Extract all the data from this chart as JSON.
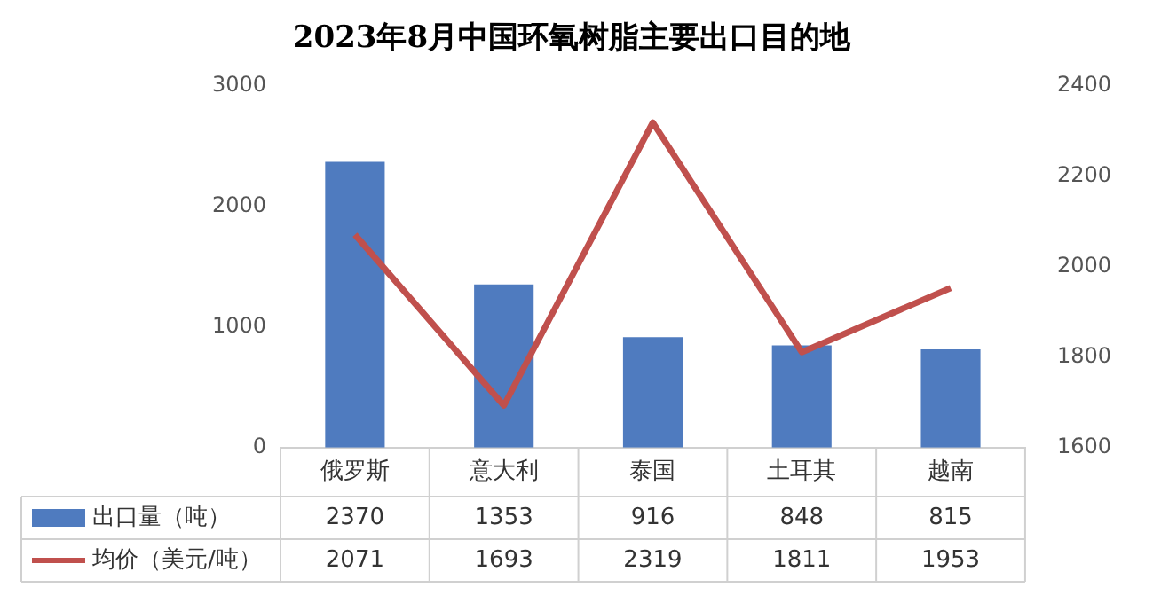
{
  "chart_data": {
    "type": "bar",
    "title": "2023年8月中国环氧树脂主要出口目的地",
    "categories": [
      "俄罗斯",
      "意大利",
      "泰国",
      "土耳其",
      "越南"
    ],
    "series": [
      {
        "name": "出口量（吨）",
        "color": "#4f7bbf",
        "values": [
          2370,
          1353,
          916,
          848,
          815
        ]
      },
      {
        "name": "均价（美元/吨）",
        "type": "line",
        "axis": "y2",
        "color": "#c0504d",
        "values": [
          2071,
          1693,
          2319,
          1811,
          1953
        ]
      }
    ],
    "ylim": [
      0,
      3000
    ],
    "yticks": [
      0,
      1000,
      2000,
      3000
    ],
    "y2lim": [
      1600,
      2400
    ],
    "y2ticks": [
      1600,
      1800,
      2000,
      2200,
      2400
    ],
    "data_labels": true,
    "legend": "bottom",
    "grid": false,
    "marker": "none",
    "line_style": "solid"
  }
}
